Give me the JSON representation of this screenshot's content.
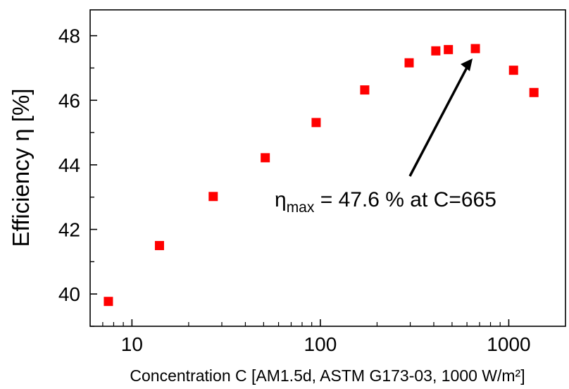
{
  "chart_data": {
    "type": "scatter",
    "title": "",
    "xlabel": "Concentration C [AM1.5d, ASTM G173-03, 1000 W/m²]",
    "ylabel": "Efficiency η [%]",
    "x_scale": "log",
    "xlim": [
      6,
      2000
    ],
    "ylim": [
      39,
      48.8
    ],
    "x_ticks": [
      10,
      100,
      1000
    ],
    "x_tick_labels": [
      "10",
      "100",
      "1000"
    ],
    "y_ticks": [
      40,
      42,
      44,
      46,
      48
    ],
    "y_tick_labels": [
      "40",
      "42",
      "44",
      "46",
      "48"
    ],
    "grid": false,
    "legend": "none",
    "marker_color": "#ff0000",
    "series": [
      {
        "x": [
          7.5,
          14,
          27,
          51,
          95,
          172,
          296,
          410,
          478,
          665,
          1060,
          1360
        ],
        "y": [
          39.77,
          41.5,
          43.02,
          44.22,
          45.31,
          46.32,
          47.16,
          47.53,
          47.57,
          47.6,
          46.93,
          46.24
        ]
      }
    ],
    "annotation": {
      "prefix": "η",
      "subscript": "max",
      "text": " = 47.6 % at C=665",
      "arrow_to": {
        "x": 665,
        "y": 47.6
      }
    }
  }
}
